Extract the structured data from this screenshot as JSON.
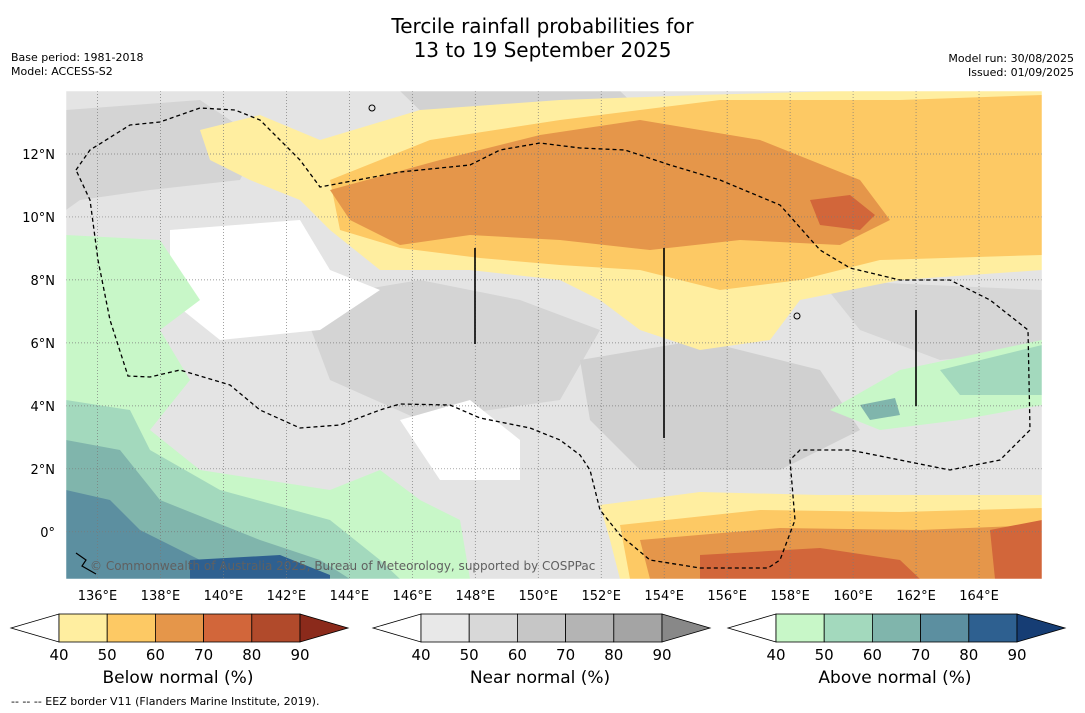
{
  "header": {
    "title_line1": "Tercile rainfall probabilities for",
    "title_line2": "13 to 19 September 2025",
    "base_period": "Base period: 1981-2018",
    "model": "Model: ACCESS-S2",
    "model_run": "Model run: 30/08/2025",
    "issued": "Issued: 01/09/2025"
  },
  "map": {
    "lon_labels": [
      "136°E",
      "138°E",
      "140°E",
      "142°E",
      "144°E",
      "146°E",
      "148°E",
      "150°E",
      "152°E",
      "154°E",
      "156°E",
      "158°E",
      "160°E",
      "162°E",
      "164°E"
    ],
    "lat_labels": [
      "12°N",
      "10°N",
      "8°N",
      "6°N",
      "4°N",
      "2°N",
      "0°"
    ],
    "lon_range": [
      135.0,
      166.0
    ],
    "lat_range": [
      -1.5,
      14.0
    ],
    "copyright": "© Commonwealth of Australia 2025, Bureau of Meteorology, supported by COSPPac",
    "eez_border_color": "#000000",
    "grid": true
  },
  "colorbars": {
    "ticks": [
      "40",
      "50",
      "60",
      "70",
      "80",
      "90"
    ],
    "below": {
      "label": "Below normal (%)",
      "colors": [
        "#ffffff",
        "#ffeea0",
        "#fdc964",
        "#e5964a",
        "#d2663a",
        "#b14a2b",
        "#8b2a1b"
      ]
    },
    "near": {
      "label": "Near normal (%)",
      "colors": [
        "#ffffff",
        "#e8e8e8",
        "#d8d8d8",
        "#c6c6c6",
        "#b4b4b4",
        "#a4a4a4",
        "#888888"
      ]
    },
    "above": {
      "label": "Above normal (%)",
      "colors": [
        "#ffffff",
        "#c8f7c8",
        "#a3d9bd",
        "#80b5ac",
        "#5c8fa0",
        "#2e6090",
        "#163d74"
      ]
    }
  },
  "footer": {
    "eez_note": "--  --  -- EEZ border V11 (Flanders Marine Institute, 2019)."
  }
}
